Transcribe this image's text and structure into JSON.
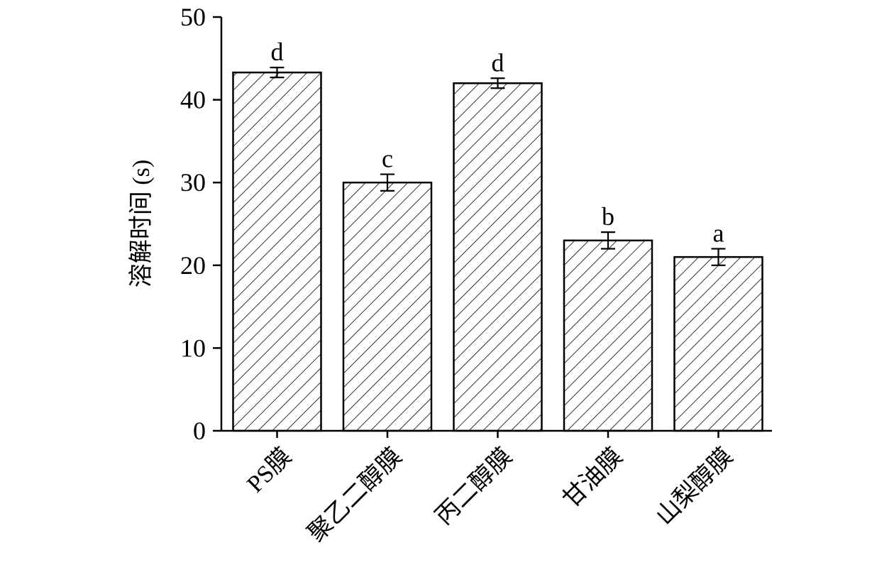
{
  "chart_data": {
    "type": "bar",
    "title": "",
    "xlabel": "",
    "ylabel": "溶解时间 (s)",
    "ylim": [
      0,
      50
    ],
    "yticks": [
      0,
      10,
      20,
      30,
      40,
      50
    ],
    "grid": false,
    "legend": "none",
    "categories": [
      "PS膜",
      "聚乙二醇膜",
      "丙二醇膜",
      "甘油膜",
      "山梨醇膜"
    ],
    "values": [
      43.3,
      30.0,
      42.0,
      23.0,
      21.0
    ],
    "errors": [
      0.6,
      1.0,
      0.6,
      1.0,
      1.0
    ],
    "significance": [
      "d",
      "c",
      "d",
      "b",
      "a"
    ],
    "bar_fill": "hatched",
    "colors": {
      "stroke": "#000000",
      "fill": "#ffffff"
    }
  }
}
